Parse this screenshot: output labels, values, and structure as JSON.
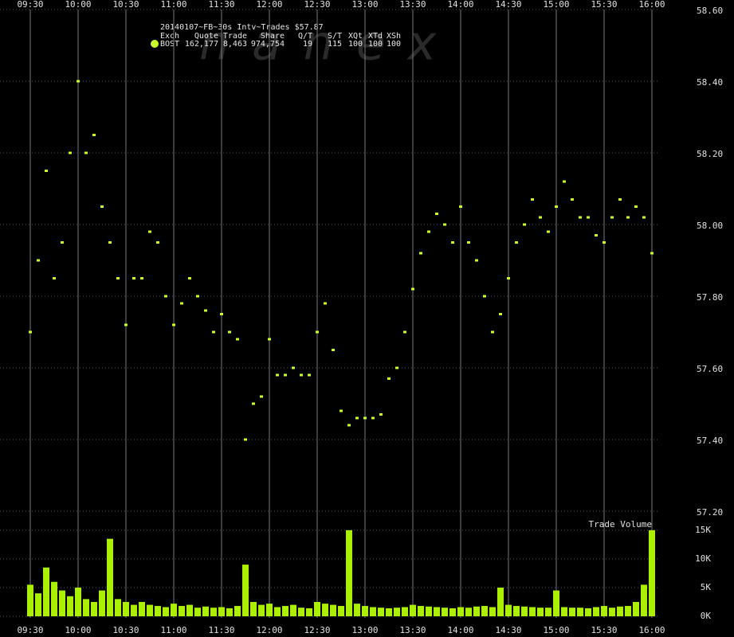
{
  "header": {
    "title": "20140107~FB~30s Intv~Trades $57.87",
    "columns": [
      "Exch",
      "Quote",
      "Trade",
      "Share",
      "Q/T",
      "S/T",
      "XQt",
      "XTd",
      "XSh"
    ],
    "row": [
      "BOST",
      "162,177",
      "8,463",
      "974,754",
      "19",
      "115",
      "100",
      "100",
      "100"
    ],
    "watermark": "nanex"
  },
  "chart_data": [
    {
      "type": "scatter",
      "xlim": [
        570,
        960
      ],
      "xticks": [
        {
          "value": 570,
          "label": "09:30"
        },
        {
          "value": 600,
          "label": "10:00"
        },
        {
          "value": 630,
          "label": "10:30"
        },
        {
          "value": 660,
          "label": "11:00"
        },
        {
          "value": 690,
          "label": "11:30"
        },
        {
          "value": 720,
          "label": "12:00"
        },
        {
          "value": 750,
          "label": "12:30"
        },
        {
          "value": 780,
          "label": "13:00"
        },
        {
          "value": 810,
          "label": "13:30"
        },
        {
          "value": 840,
          "label": "14:00"
        },
        {
          "value": 870,
          "label": "14:30"
        },
        {
          "value": 900,
          "label": "15:00"
        },
        {
          "value": 930,
          "label": "15:30"
        },
        {
          "value": 960,
          "label": "16:00"
        }
      ],
      "ylim": [
        57.2,
        58.6
      ],
      "yticks": [
        {
          "value": 57.2,
          "label": "57.20"
        },
        {
          "value": 57.4,
          "label": "57.40"
        },
        {
          "value": 57.6,
          "label": "57.60"
        },
        {
          "value": 57.8,
          "label": "57.80"
        },
        {
          "value": 58.0,
          "label": "58.00"
        },
        {
          "value": 58.2,
          "label": "58.20"
        },
        {
          "value": 58.4,
          "label": "58.40"
        },
        {
          "value": 58.6,
          "label": "58.60"
        }
      ],
      "grid": true,
      "series": [
        {
          "name": "BOST",
          "color": "#c8ff30",
          "x": [
            570,
            575,
            580,
            585,
            590,
            595,
            600,
            605,
            610,
            615,
            620,
            625,
            630,
            635,
            640,
            645,
            650,
            655,
            660,
            665,
            670,
            675,
            680,
            685,
            690,
            695,
            700,
            705,
            710,
            715,
            720,
            725,
            730,
            735,
            740,
            745,
            750,
            755,
            760,
            765,
            770,
            775,
            780,
            785,
            790,
            795,
            800,
            805,
            810,
            815,
            820,
            825,
            830,
            835,
            840,
            845,
            850,
            855,
            860,
            865,
            870,
            875,
            880,
            885,
            890,
            895,
            900,
            905,
            910,
            915,
            920,
            925,
            930,
            935,
            940,
            945,
            950,
            955,
            960
          ],
          "values": [
            57.7,
            57.9,
            58.15,
            57.85,
            57.95,
            58.2,
            58.4,
            58.2,
            58.25,
            58.05,
            57.95,
            57.85,
            57.72,
            57.85,
            57.85,
            57.98,
            57.95,
            57.8,
            57.72,
            57.78,
            57.85,
            57.8,
            57.76,
            57.7,
            57.75,
            57.7,
            57.68,
            57.4,
            57.5,
            57.52,
            57.68,
            57.58,
            57.58,
            57.6,
            57.58,
            57.58,
            57.7,
            57.78,
            57.65,
            57.48,
            57.44,
            57.46,
            57.46,
            57.46,
            57.47,
            57.57,
            57.6,
            57.7,
            57.82,
            57.92,
            57.98,
            58.03,
            58.0,
            57.95,
            58.05,
            57.95,
            57.9,
            57.8,
            57.7,
            57.75,
            57.85,
            57.95,
            58.0,
            58.07,
            58.02,
            57.98,
            58.05,
            58.12,
            58.07,
            58.02,
            58.02,
            57.97,
            57.95,
            58.02,
            58.07,
            58.02,
            58.05,
            58.02,
            57.92
          ]
        }
      ]
    },
    {
      "type": "bar",
      "title": "Trade Volume",
      "xlim": [
        570,
        960
      ],
      "ylim": [
        0,
        17200
      ],
      "yticks": [
        {
          "value": 0,
          "label": "0K"
        },
        {
          "value": 5000,
          "label": "5K"
        },
        {
          "value": 10000,
          "label": "10K"
        },
        {
          "value": 15000,
          "label": "15K"
        }
      ],
      "color": "#aaf000",
      "x": [
        570,
        575,
        580,
        585,
        590,
        595,
        600,
        605,
        610,
        615,
        620,
        625,
        630,
        635,
        640,
        645,
        650,
        655,
        660,
        665,
        670,
        675,
        680,
        685,
        690,
        695,
        700,
        705,
        710,
        715,
        720,
        725,
        730,
        735,
        740,
        745,
        750,
        755,
        760,
        765,
        770,
        775,
        780,
        785,
        790,
        795,
        800,
        805,
        810,
        815,
        820,
        825,
        830,
        835,
        840,
        845,
        850,
        855,
        860,
        865,
        870,
        875,
        880,
        885,
        890,
        895,
        900,
        905,
        910,
        915,
        920,
        925,
        930,
        935,
        940,
        945,
        950,
        955,
        960
      ],
      "values": [
        5500,
        4000,
        8500,
        6000,
        4500,
        3500,
        5000,
        3000,
        2500,
        4500,
        13500,
        3000,
        2500,
        2000,
        2500,
        2000,
        1800,
        1600,
        2200,
        1800,
        2000,
        1500,
        1700,
        1500,
        1600,
        1400,
        1800,
        9000,
        2500,
        2000,
        2200,
        1600,
        1800,
        2000,
        1500,
        1400,
        2500,
        2200,
        2000,
        1800,
        15000,
        2200,
        1800,
        1600,
        1500,
        1400,
        1500,
        1600,
        2000,
        1800,
        1700,
        1600,
        1500,
        1400,
        1600,
        1500,
        1700,
        1800,
        1600,
        5000,
        2000,
        1800,
        1700,
        1600,
        1500,
        1500,
        4500,
        1600,
        1500,
        1500,
        1400,
        1600,
        1800,
        1500,
        1700,
        1800,
        2500,
        5500,
        15000
      ]
    }
  ]
}
